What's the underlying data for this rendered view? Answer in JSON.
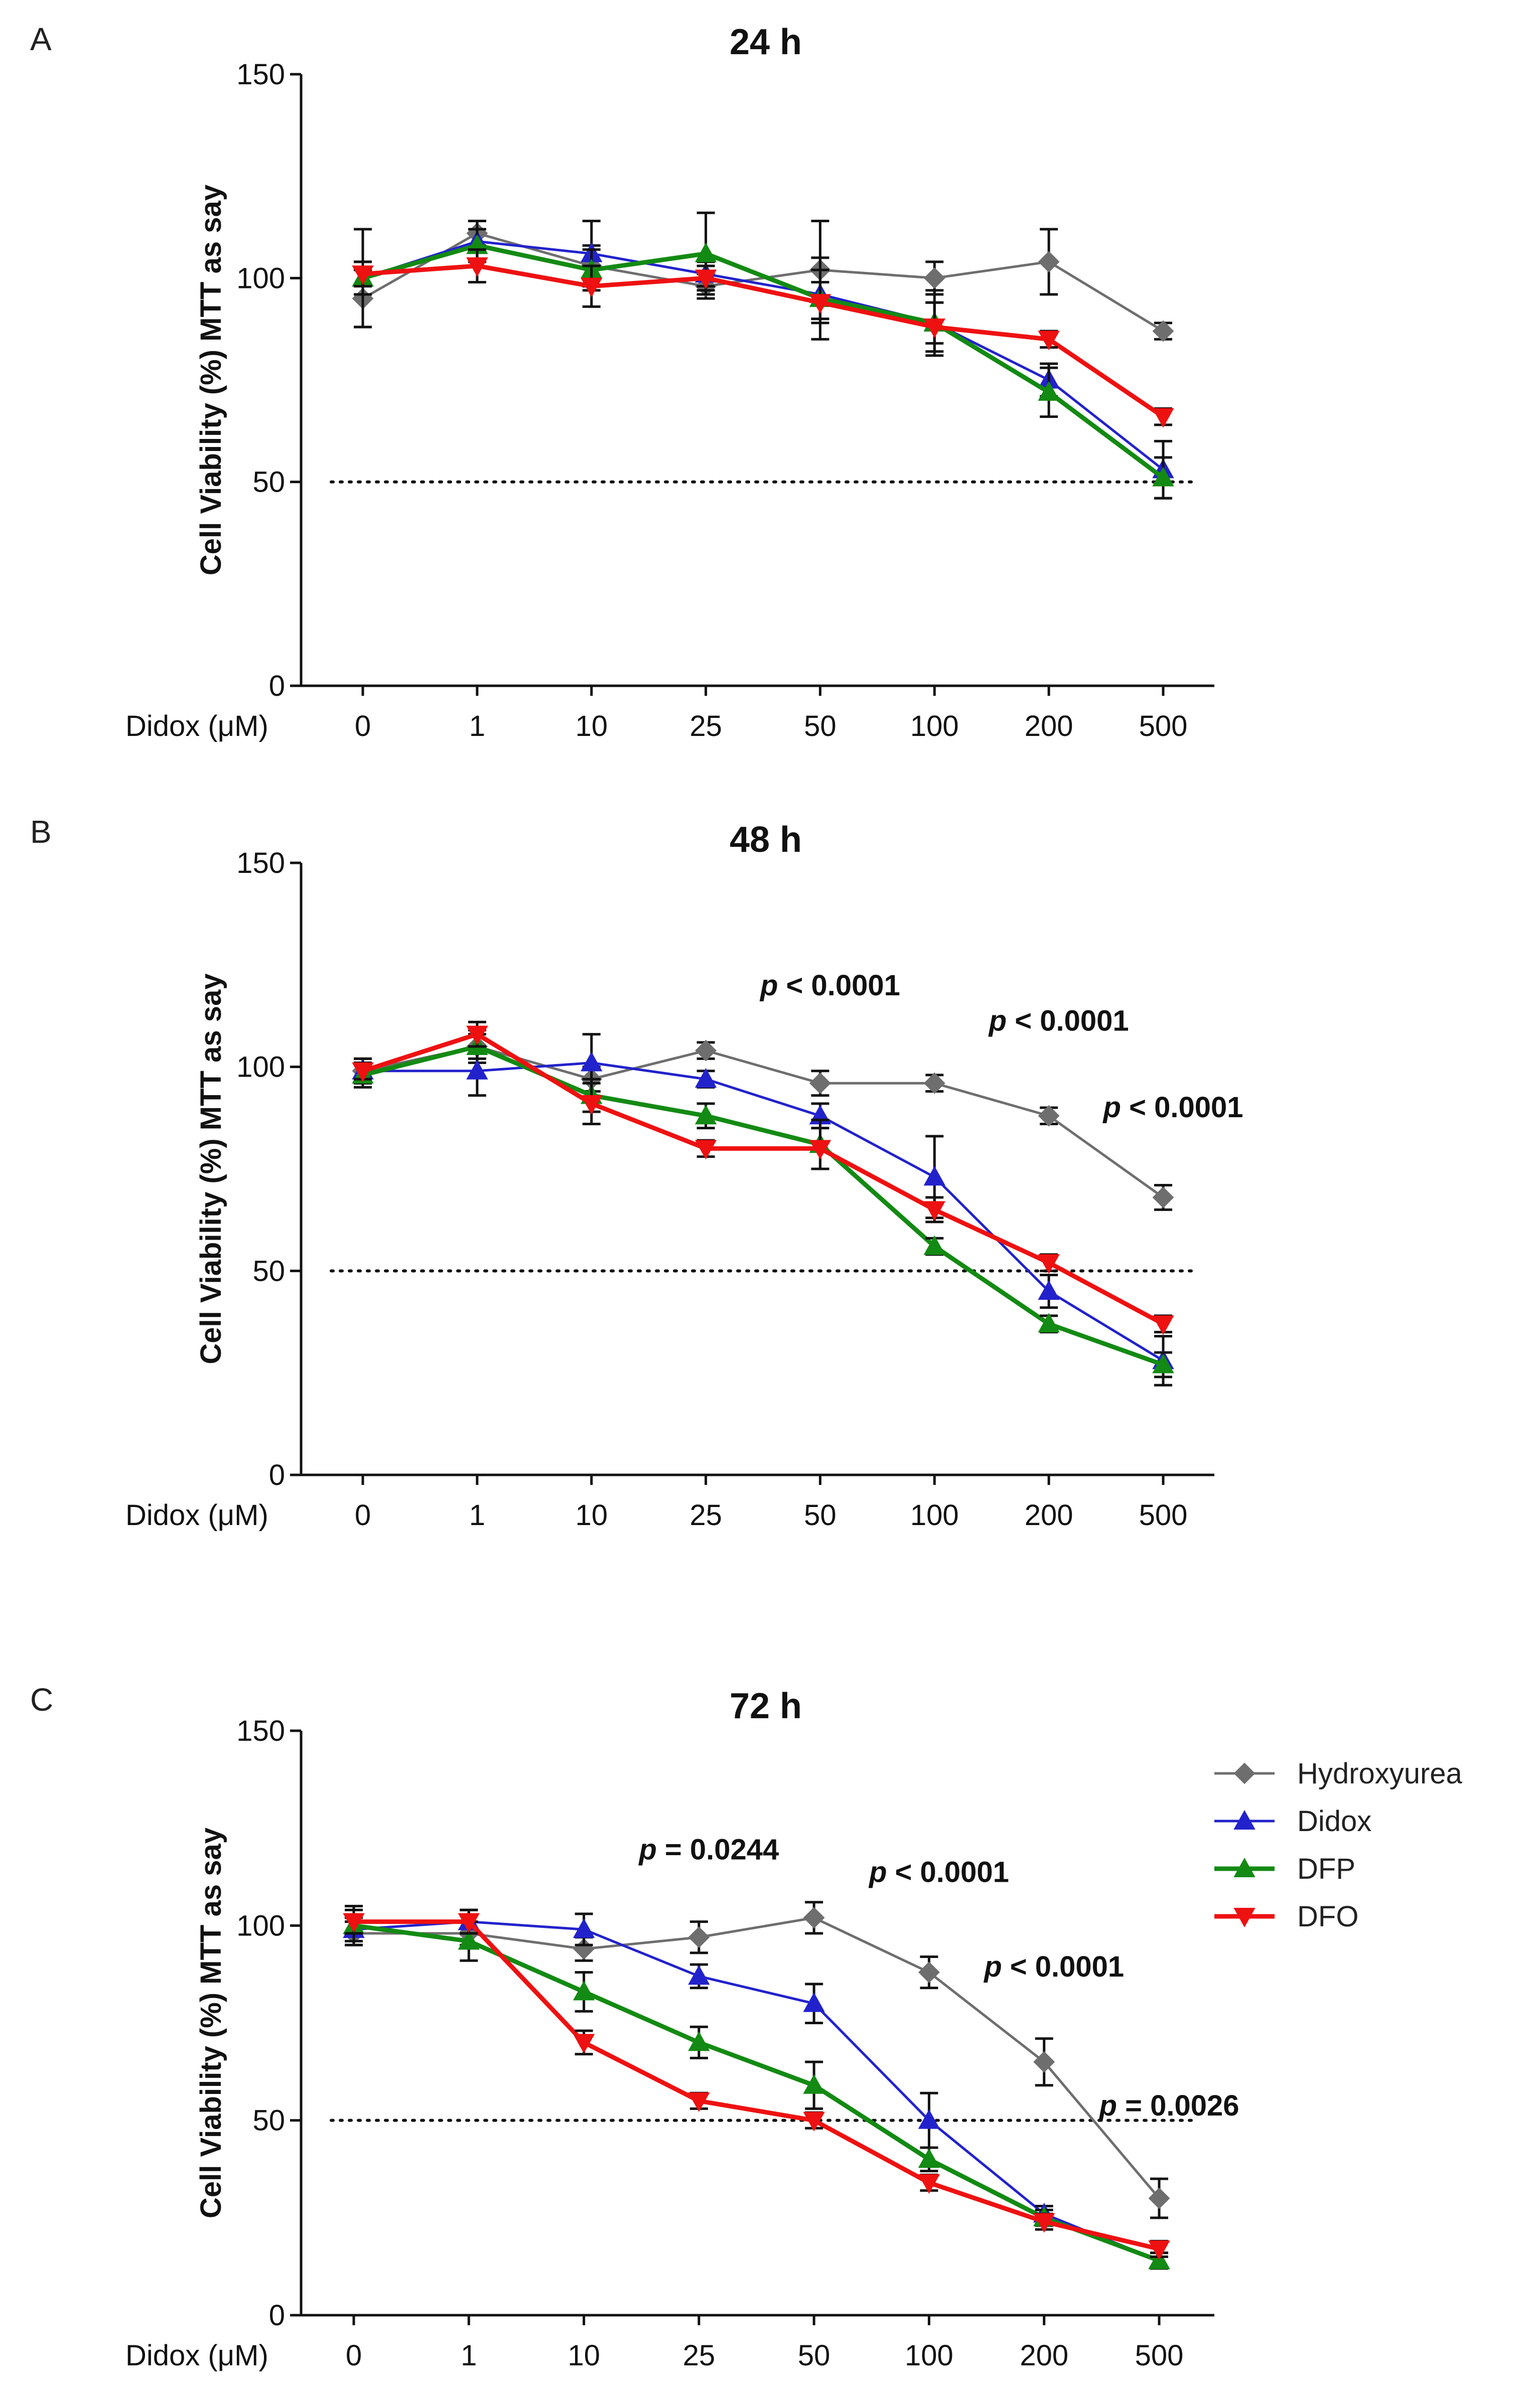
{
  "figure": {
    "x_name": "Didox (μM)"
  },
  "legend": [
    {
      "name": "Hydroxyurea",
      "color": "#6e6e6e",
      "marker": "diamond"
    },
    {
      "name": "Didox",
      "color": "#2222cc",
      "marker": "triangle-up"
    },
    {
      "name": "DFP",
      "color": "#138a13",
      "marker": "triangle-up"
    },
    {
      "name": "DFO",
      "color": "#ee1111",
      "marker": "triangle-down"
    }
  ],
  "chart_data": [
    {
      "type": "line",
      "panel": "A",
      "title": "24 h",
      "ylabel": "Cell Viability (%) MTT as say",
      "xlabel": "Didox (μM)",
      "categories": [
        "0",
        "1",
        "10",
        "25",
        "50",
        "100",
        "200",
        "500"
      ],
      "ylim": [
        0,
        150
      ],
      "yticks": [
        0,
        50,
        100,
        150
      ],
      "reference_line": 50,
      "series": [
        {
          "name": "Hydroxyurea",
          "values": [
            95,
            111,
            103,
            98,
            102,
            100,
            104,
            87
          ],
          "errors": [
            7,
            3,
            5,
            3,
            12,
            4,
            8,
            2
          ]
        },
        {
          "name": "Didox",
          "values": [
            100,
            109,
            106,
            101,
            96,
            89,
            75,
            53
          ],
          "errors": [
            12,
            5,
            8,
            3,
            6,
            5,
            4,
            7
          ]
        },
        {
          "name": "DFP",
          "values": [
            100,
            108,
            102,
            106,
            95,
            89,
            72,
            51
          ],
          "errors": [
            4,
            4,
            5,
            10,
            10,
            8,
            6,
            5
          ]
        },
        {
          "name": "DFO",
          "values": [
            101,
            103,
            98,
            100,
            94,
            88,
            85,
            66
          ],
          "errors": [
            3,
            4,
            5,
            3,
            5,
            6,
            2,
            2
          ]
        }
      ],
      "annotations": []
    },
    {
      "type": "line",
      "panel": "B",
      "title": "48 h",
      "ylabel": "Cell Viability (%) MTT as say",
      "xlabel": "Didox (μM)",
      "categories": [
        "0",
        "1",
        "10",
        "25",
        "50",
        "100",
        "200",
        "500"
      ],
      "ylim": [
        0,
        150
      ],
      "yticks": [
        0,
        50,
        100,
        150
      ],
      "reference_line": 50,
      "series": [
        {
          "name": "Hydroxyurea",
          "values": [
            99,
            105,
            97,
            104,
            96,
            96,
            88,
            68
          ],
          "errors": [
            3,
            4,
            3,
            2,
            3,
            2,
            2,
            3
          ]
        },
        {
          "name": "Didox",
          "values": [
            99,
            99,
            101,
            97,
            88,
            73,
            45,
            28
          ],
          "errors": [
            3,
            6,
            7,
            2,
            3,
            10,
            4,
            6
          ]
        },
        {
          "name": "DFP",
          "values": [
            98,
            105,
            93,
            88,
            81,
            56,
            37,
            27
          ],
          "errors": [
            3,
            3,
            4,
            3,
            6,
            2,
            2,
            3
          ]
        },
        {
          "name": "DFO",
          "values": [
            99,
            108,
            91,
            80,
            80,
            65,
            52,
            37
          ],
          "errors": [
            2,
            3,
            5,
            2,
            5,
            3,
            2,
            2
          ]
        }
      ],
      "annotations": [
        {
          "prefix": "p",
          "text": " < 0.0001",
          "category": "50"
        },
        {
          "prefix": "p",
          "text": " < 0.0001",
          "category": "200"
        },
        {
          "prefix": "p",
          "text": " < 0.0001",
          "category": "500"
        }
      ]
    },
    {
      "type": "line",
      "panel": "C",
      "title": "72 h",
      "ylabel": "Cell Viability (%) MTT as say",
      "xlabel": "Didox (μM)",
      "categories": [
        "0",
        "1",
        "10",
        "25",
        "50",
        "100",
        "200",
        "500"
      ],
      "ylim": [
        0,
        150
      ],
      "yticks": [
        0,
        50,
        100,
        150
      ],
      "reference_line": 50,
      "series": [
        {
          "name": "Hydroxyurea",
          "values": [
            98,
            98,
            94,
            97,
            102,
            88,
            65,
            30
          ],
          "errors": [
            3,
            3,
            3,
            4,
            4,
            4,
            6,
            5
          ]
        },
        {
          "name": "Didox",
          "values": [
            99,
            101,
            99,
            87,
            80,
            50,
            26,
            14
          ],
          "errors": [
            3,
            3,
            4,
            3,
            5,
            7,
            2,
            2
          ]
        },
        {
          "name": "DFP",
          "values": [
            100,
            96,
            83,
            70,
            59,
            40,
            25,
            14
          ],
          "errors": [
            5,
            5,
            5,
            4,
            6,
            3,
            2,
            2
          ]
        },
        {
          "name": "DFO",
          "values": [
            101,
            101,
            70,
            55,
            50,
            34,
            24,
            17
          ],
          "errors": [
            3,
            3,
            3,
            2,
            2,
            2,
            2,
            2
          ]
        }
      ],
      "annotations": [
        {
          "prefix": "p",
          "text": " = 0.0244",
          "category": "25"
        },
        {
          "prefix": "p",
          "text": " < 0.0001",
          "category": "100"
        },
        {
          "prefix": "p",
          "text": " < 0.0001",
          "category": "200"
        },
        {
          "prefix": "p",
          "text": " = 0.0026",
          "category": "500"
        }
      ]
    }
  ]
}
